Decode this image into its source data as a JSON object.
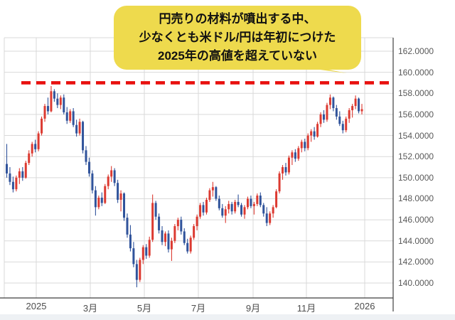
{
  "annotation": {
    "lines": [
      "円売りの材料が噴出する中、",
      "少なくとも米ドル/円は年初につけた",
      "2025年の高値を超えていない"
    ],
    "fill_color": "#eeda4d",
    "text_color": "#111111"
  },
  "chart_data": {
    "type": "candlestick",
    "instrument": "米ドル/円",
    "x_tick_labels": [
      "2025",
      "3月",
      "5月",
      "7月",
      "9月",
      "11月",
      "2026"
    ],
    "y_tick_labels": [
      "162.0000",
      "160.0000",
      "158.0000",
      "156.0000",
      "154.0000",
      "152.0000",
      "150.0000",
      "148.0000",
      "146.0000",
      "144.0000",
      "142.0000",
      "140.0000"
    ],
    "y_ticks": [
      162,
      160,
      158,
      156,
      154,
      152,
      150,
      148,
      146,
      144,
      142,
      140
    ],
    "ylim": [
      138.6,
      163.3
    ],
    "grid": true,
    "reference_line": {
      "value": 159.0,
      "style": "dashed",
      "color": "#e8100e",
      "meaning": "2025 year high level"
    },
    "up_color": "#dc3a31",
    "down_color": "#30539b",
    "grid_color": "#d9d9d9",
    "axis_color": "#3f3f3f",
    "candles": [
      [
        151.3,
        153.2,
        150.0,
        150.4
      ],
      [
        150.4,
        151.0,
        149.3,
        149.6
      ],
      [
        149.6,
        150.1,
        148.6,
        148.9
      ],
      [
        148.9,
        150.2,
        148.7,
        150.0
      ],
      [
        150.0,
        150.9,
        149.4,
        150.6
      ],
      [
        150.6,
        151.0,
        149.7,
        150.0
      ],
      [
        150.0,
        151.6,
        149.9,
        151.4
      ],
      [
        151.4,
        152.6,
        151.2,
        152.3
      ],
      [
        152.3,
        153.4,
        152.0,
        153.2
      ],
      [
        153.2,
        153.6,
        152.4,
        152.7
      ],
      [
        152.7,
        154.4,
        152.5,
        154.2
      ],
      [
        154.2,
        155.8,
        154.0,
        155.6
      ],
      [
        155.6,
        157.0,
        155.3,
        156.8
      ],
      [
        156.8,
        157.6,
        156.0,
        156.3
      ],
      [
        156.3,
        158.7,
        156.2,
        158.2
      ],
      [
        158.2,
        158.4,
        157.2,
        157.5
      ],
      [
        157.5,
        158.0,
        156.6,
        156.9
      ],
      [
        156.9,
        157.8,
        156.5,
        157.6
      ],
      [
        157.6,
        157.9,
        156.0,
        156.2
      ],
      [
        156.2,
        156.7,
        155.1,
        155.4
      ],
      [
        155.4,
        156.5,
        155.2,
        156.3
      ],
      [
        156.3,
        156.6,
        154.8,
        155.0
      ],
      [
        155.0,
        155.5,
        153.9,
        154.2
      ],
      [
        154.2,
        155.6,
        154.0,
        155.3
      ],
      [
        155.3,
        155.4,
        152.3,
        152.6
      ],
      [
        152.6,
        153.0,
        151.2,
        151.5
      ],
      [
        151.5,
        151.9,
        150.1,
        150.4
      ],
      [
        150.4,
        150.7,
        148.5,
        148.8
      ],
      [
        148.8,
        149.2,
        146.4,
        147.2
      ],
      [
        147.2,
        148.3,
        147.0,
        148.1
      ],
      [
        148.1,
        148.6,
        147.3,
        147.6
      ],
      [
        147.6,
        149.4,
        147.5,
        149.2
      ],
      [
        149.2,
        150.3,
        148.9,
        150.1
      ],
      [
        150.1,
        151.1,
        149.6,
        150.7
      ],
      [
        150.7,
        150.9,
        149.2,
        149.5
      ],
      [
        149.5,
        149.8,
        147.6,
        147.9
      ],
      [
        147.9,
        148.8,
        146.8,
        148.5
      ],
      [
        148.5,
        148.6,
        145.9,
        146.2
      ],
      [
        146.2,
        146.6,
        144.3,
        144.6
      ],
      [
        144.6,
        145.5,
        143.0,
        143.3
      ],
      [
        143.3,
        143.9,
        141.5,
        141.8
      ],
      [
        141.8,
        142.2,
        139.6,
        140.3
      ],
      [
        140.3,
        142.4,
        140.1,
        142.2
      ],
      [
        142.2,
        143.6,
        141.8,
        143.4
      ],
      [
        143.4,
        143.7,
        142.3,
        142.6
      ],
      [
        142.6,
        144.4,
        142.4,
        144.1
      ],
      [
        144.1,
        148.4,
        143.9,
        147.6
      ],
      [
        147.6,
        147.8,
        146.0,
        146.3
      ],
      [
        146.3,
        146.6,
        144.7,
        145.0
      ],
      [
        145.0,
        145.4,
        143.6,
        143.9
      ],
      [
        143.9,
        144.9,
        143.5,
        144.7
      ],
      [
        144.7,
        145.0,
        142.9,
        143.2
      ],
      [
        143.2,
        144.3,
        142.1,
        144.0
      ],
      [
        144.0,
        145.6,
        143.8,
        145.4
      ],
      [
        145.4,
        146.2,
        145.0,
        146.0
      ],
      [
        146.0,
        146.3,
        144.6,
        144.9
      ],
      [
        144.9,
        145.2,
        143.6,
        143.8
      ],
      [
        143.8,
        144.2,
        142.8,
        143.0
      ],
      [
        143.0,
        144.5,
        142.8,
        144.3
      ],
      [
        144.3,
        145.6,
        144.1,
        145.4
      ],
      [
        145.4,
        146.5,
        145.0,
        146.3
      ],
      [
        146.3,
        147.6,
        146.1,
        147.4
      ],
      [
        147.4,
        147.7,
        146.4,
        146.7
      ],
      [
        146.7,
        148.1,
        146.5,
        147.9
      ],
      [
        147.9,
        149.0,
        147.7,
        148.8
      ],
      [
        148.8,
        149.6,
        148.2,
        149.1
      ],
      [
        149.1,
        149.2,
        147.8,
        148.0
      ],
      [
        148.0,
        148.3,
        146.9,
        147.1
      ],
      [
        147.1,
        147.5,
        146.2,
        146.4
      ],
      [
        146.4,
        147.3,
        145.7,
        147.0
      ],
      [
        147.0,
        147.8,
        146.6,
        147.5
      ],
      [
        147.5,
        147.7,
        146.5,
        146.8
      ],
      [
        146.8,
        147.9,
        146.6,
        147.7
      ],
      [
        147.7,
        148.4,
        147.2,
        147.4
      ],
      [
        147.4,
        147.6,
        146.3,
        146.5
      ],
      [
        146.5,
        147.4,
        146.1,
        147.2
      ],
      [
        147.2,
        148.2,
        147.0,
        148.0
      ],
      [
        148.0,
        148.3,
        147.1,
        147.3
      ],
      [
        147.3,
        147.7,
        146.5,
        147.5
      ],
      [
        147.5,
        148.5,
        147.3,
        148.3
      ],
      [
        148.3,
        148.6,
        147.2,
        147.4
      ],
      [
        147.4,
        147.6,
        146.3,
        146.6
      ],
      [
        146.6,
        147.2,
        145.4,
        145.7
      ],
      [
        145.7,
        146.8,
        145.5,
        146.6
      ],
      [
        146.6,
        147.4,
        146.2,
        147.2
      ],
      [
        147.2,
        148.9,
        147.1,
        148.7
      ],
      [
        148.7,
        150.6,
        148.5,
        150.4
      ],
      [
        150.4,
        151.2,
        149.8,
        151.0
      ],
      [
        151.0,
        151.4,
        150.2,
        150.5
      ],
      [
        150.5,
        152.1,
        150.3,
        151.9
      ],
      [
        151.9,
        152.6,
        151.2,
        152.4
      ],
      [
        152.4,
        152.7,
        151.5,
        151.8
      ],
      [
        151.8,
        153.0,
        151.6,
        152.8
      ],
      [
        152.8,
        153.6,
        152.4,
        153.4
      ],
      [
        153.4,
        153.7,
        152.5,
        152.8
      ],
      [
        152.8,
        154.2,
        152.6,
        154.0
      ],
      [
        154.0,
        154.6,
        153.4,
        154.4
      ],
      [
        154.4,
        154.8,
        153.6,
        153.9
      ],
      [
        153.9,
        155.3,
        153.8,
        155.1
      ],
      [
        155.1,
        156.2,
        154.8,
        156.0
      ],
      [
        156.0,
        156.4,
        155.2,
        155.5
      ],
      [
        155.5,
        157.1,
        155.3,
        156.9
      ],
      [
        156.9,
        157.9,
        156.5,
        157.6
      ],
      [
        157.6,
        157.7,
        156.3,
        156.6
      ],
      [
        156.6,
        156.9,
        155.5,
        155.8
      ],
      [
        155.8,
        156.3,
        154.9,
        155.1
      ],
      [
        155.1,
        155.4,
        154.2,
        154.5
      ],
      [
        154.5,
        155.8,
        154.3,
        155.6
      ],
      [
        155.6,
        156.6,
        155.2,
        156.4
      ],
      [
        156.4,
        157.0,
        155.7,
        156.8
      ],
      [
        156.8,
        157.8,
        156.5,
        157.5
      ],
      [
        157.5,
        157.6,
        156.1,
        156.3
      ],
      [
        156.3,
        157.0,
        156.0,
        156.5
      ]
    ]
  }
}
